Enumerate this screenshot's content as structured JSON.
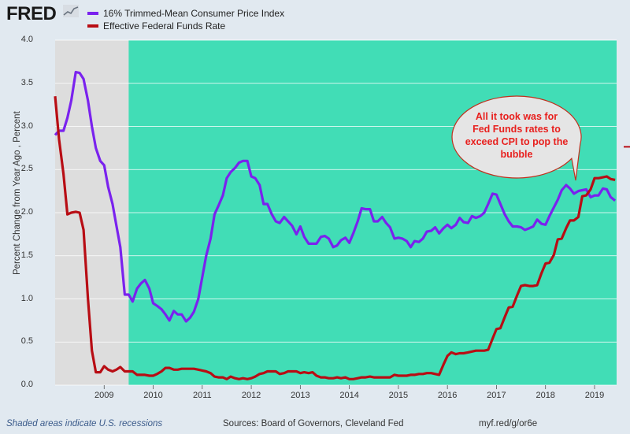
{
  "header": {
    "logo_text": "FRED",
    "logo_icon": "chart-line-icon"
  },
  "legend": [
    {
      "name": "16% Trimmed-Mean Consumer Price Index",
      "color": "#7a22ee"
    },
    {
      "name": "Effective Federal Funds Rate",
      "color": "#b80d14"
    }
  ],
  "annotation": {
    "text": "All it took was for Fed Funds rates to exceed CPI to pop the bubble",
    "lines": [
      "All it took was for",
      "Fed Funds rates to",
      "exceed CPI to pop the",
      "bubble"
    ],
    "text_color": "#e8201e",
    "bubble_color": "#e5e5e5"
  },
  "footer": {
    "recessions_note": "Shaded areas indicate U.S. recessions",
    "sources": "Sources: Board of Governors, Cleveland Fed",
    "link": "myf.red/g/or6e"
  },
  "colors": {
    "plot_background": "#41ddb6",
    "recession_shade": "#dddddd",
    "page_background": "#e1e9f0"
  },
  "chart_data": {
    "type": "line",
    "title": "",
    "xlabel": "",
    "ylabel": "Percent Change from Year Ago , Percent",
    "xlim": [
      2008.0,
      2019.45
    ],
    "ylim": [
      0,
      4.0
    ],
    "y_ticks": [
      "0.0",
      "0.5",
      "1.0",
      "1.5",
      "2.0",
      "2.5",
      "3.0",
      "3.5",
      "4.0"
    ],
    "x_ticks": [
      "2009",
      "2010",
      "2011",
      "2012",
      "2013",
      "2014",
      "2015",
      "2016",
      "2017",
      "2018",
      "2019"
    ],
    "grid": true,
    "legend_position": "top-left",
    "recessions": [
      [
        2008.0,
        2009.5
      ]
    ],
    "series": [
      {
        "name": "16% Trimmed-Mean Consumer Price Index",
        "color": "#7a22ee",
        "points": [
          [
            2008.0,
            2.9
          ],
          [
            2008.08,
            2.95
          ],
          [
            2008.17,
            2.95
          ],
          [
            2008.25,
            3.1
          ],
          [
            2008.33,
            3.3
          ],
          [
            2008.42,
            3.63
          ],
          [
            2008.5,
            3.62
          ],
          [
            2008.58,
            3.55
          ],
          [
            2008.67,
            3.3
          ],
          [
            2008.75,
            3.0
          ],
          [
            2008.83,
            2.75
          ],
          [
            2008.92,
            2.6
          ],
          [
            2009.0,
            2.55
          ],
          [
            2009.08,
            2.3
          ],
          [
            2009.17,
            2.1
          ],
          [
            2009.25,
            1.85
          ],
          [
            2009.33,
            1.6
          ],
          [
            2009.42,
            1.05
          ],
          [
            2009.5,
            1.05
          ],
          [
            2009.58,
            0.97
          ],
          [
            2009.67,
            1.12
          ],
          [
            2009.75,
            1.18
          ],
          [
            2009.83,
            1.22
          ],
          [
            2009.92,
            1.12
          ],
          [
            2010.0,
            0.95
          ],
          [
            2010.08,
            0.92
          ],
          [
            2010.17,
            0.88
          ],
          [
            2010.25,
            0.82
          ],
          [
            2010.33,
            0.75
          ],
          [
            2010.42,
            0.86
          ],
          [
            2010.5,
            0.82
          ],
          [
            2010.58,
            0.82
          ],
          [
            2010.67,
            0.74
          ],
          [
            2010.75,
            0.78
          ],
          [
            2010.83,
            0.85
          ],
          [
            2010.92,
            1.0
          ],
          [
            2011.0,
            1.25
          ],
          [
            2011.08,
            1.5
          ],
          [
            2011.17,
            1.7
          ],
          [
            2011.25,
            1.98
          ],
          [
            2011.33,
            2.08
          ],
          [
            2011.42,
            2.2
          ],
          [
            2011.5,
            2.4
          ],
          [
            2011.58,
            2.47
          ],
          [
            2011.67,
            2.52
          ],
          [
            2011.75,
            2.58
          ],
          [
            2011.83,
            2.6
          ],
          [
            2011.92,
            2.6
          ],
          [
            2012.0,
            2.42
          ],
          [
            2012.08,
            2.4
          ],
          [
            2012.17,
            2.32
          ],
          [
            2012.25,
            2.1
          ],
          [
            2012.33,
            2.1
          ],
          [
            2012.42,
            1.98
          ],
          [
            2012.5,
            1.9
          ],
          [
            2012.58,
            1.88
          ],
          [
            2012.67,
            1.95
          ],
          [
            2012.75,
            1.9
          ],
          [
            2012.83,
            1.85
          ],
          [
            2012.92,
            1.75
          ],
          [
            2013.0,
            1.84
          ],
          [
            2013.08,
            1.72
          ],
          [
            2013.17,
            1.64
          ],
          [
            2013.25,
            1.64
          ],
          [
            2013.33,
            1.64
          ],
          [
            2013.42,
            1.72
          ],
          [
            2013.5,
            1.73
          ],
          [
            2013.58,
            1.7
          ],
          [
            2013.67,
            1.6
          ],
          [
            2013.75,
            1.62
          ],
          [
            2013.83,
            1.68
          ],
          [
            2013.92,
            1.71
          ],
          [
            2014.0,
            1.65
          ],
          [
            2014.08,
            1.76
          ],
          [
            2014.17,
            1.9
          ],
          [
            2014.25,
            2.05
          ],
          [
            2014.33,
            2.04
          ],
          [
            2014.42,
            2.04
          ],
          [
            2014.5,
            1.9
          ],
          [
            2014.58,
            1.9
          ],
          [
            2014.67,
            1.95
          ],
          [
            2014.75,
            1.88
          ],
          [
            2014.83,
            1.83
          ],
          [
            2014.92,
            1.7
          ],
          [
            2015.0,
            1.71
          ],
          [
            2015.08,
            1.7
          ],
          [
            2015.17,
            1.67
          ],
          [
            2015.25,
            1.6
          ],
          [
            2015.33,
            1.67
          ],
          [
            2015.42,
            1.66
          ],
          [
            2015.5,
            1.7
          ],
          [
            2015.58,
            1.78
          ],
          [
            2015.67,
            1.79
          ],
          [
            2015.75,
            1.83
          ],
          [
            2015.83,
            1.76
          ],
          [
            2015.92,
            1.82
          ],
          [
            2016.0,
            1.86
          ],
          [
            2016.08,
            1.82
          ],
          [
            2016.17,
            1.86
          ],
          [
            2016.25,
            1.94
          ],
          [
            2016.33,
            1.89
          ],
          [
            2016.42,
            1.88
          ],
          [
            2016.5,
            1.96
          ],
          [
            2016.58,
            1.94
          ],
          [
            2016.67,
            1.96
          ],
          [
            2016.75,
            2.0
          ],
          [
            2016.83,
            2.1
          ],
          [
            2016.92,
            2.22
          ],
          [
            2017.0,
            2.21
          ],
          [
            2017.08,
            2.1
          ],
          [
            2017.17,
            1.98
          ],
          [
            2017.25,
            1.9
          ],
          [
            2017.33,
            1.84
          ],
          [
            2017.42,
            1.84
          ],
          [
            2017.5,
            1.83
          ],
          [
            2017.58,
            1.8
          ],
          [
            2017.67,
            1.82
          ],
          [
            2017.75,
            1.84
          ],
          [
            2017.83,
            1.92
          ],
          [
            2017.92,
            1.87
          ],
          [
            2018.0,
            1.86
          ],
          [
            2018.08,
            1.96
          ],
          [
            2018.17,
            2.06
          ],
          [
            2018.25,
            2.15
          ],
          [
            2018.33,
            2.26
          ],
          [
            2018.42,
            2.32
          ],
          [
            2018.5,
            2.28
          ],
          [
            2018.58,
            2.22
          ],
          [
            2018.67,
            2.25
          ],
          [
            2018.75,
            2.26
          ],
          [
            2018.83,
            2.27
          ],
          [
            2018.92,
            2.18
          ],
          [
            2019.0,
            2.2
          ],
          [
            2019.08,
            2.2
          ],
          [
            2019.17,
            2.28
          ],
          [
            2019.25,
            2.27
          ],
          [
            2019.33,
            2.18
          ],
          [
            2019.42,
            2.14
          ]
        ]
      },
      {
        "name": "Effective Federal Funds Rate",
        "color": "#b80d14",
        "points": [
          [
            2008.0,
            3.35
          ],
          [
            2008.08,
            2.85
          ],
          [
            2008.17,
            2.45
          ],
          [
            2008.25,
            1.98
          ],
          [
            2008.33,
            2.0
          ],
          [
            2008.42,
            2.01
          ],
          [
            2008.5,
            2.0
          ],
          [
            2008.58,
            1.8
          ],
          [
            2008.67,
            1.0
          ],
          [
            2008.75,
            0.4
          ],
          [
            2008.83,
            0.15
          ],
          [
            2008.92,
            0.15
          ],
          [
            2009.0,
            0.22
          ],
          [
            2009.08,
            0.18
          ],
          [
            2009.17,
            0.16
          ],
          [
            2009.25,
            0.18
          ],
          [
            2009.33,
            0.21
          ],
          [
            2009.42,
            0.16
          ],
          [
            2009.5,
            0.16
          ],
          [
            2009.58,
            0.16
          ],
          [
            2009.67,
            0.12
          ],
          [
            2009.75,
            0.12
          ],
          [
            2009.83,
            0.12
          ],
          [
            2009.92,
            0.11
          ],
          [
            2010.0,
            0.11
          ],
          [
            2010.08,
            0.13
          ],
          [
            2010.17,
            0.16
          ],
          [
            2010.25,
            0.2
          ],
          [
            2010.33,
            0.2
          ],
          [
            2010.42,
            0.18
          ],
          [
            2010.5,
            0.18
          ],
          [
            2010.58,
            0.19
          ],
          [
            2010.67,
            0.19
          ],
          [
            2010.75,
            0.19
          ],
          [
            2010.83,
            0.19
          ],
          [
            2010.92,
            0.18
          ],
          [
            2011.0,
            0.17
          ],
          [
            2011.08,
            0.16
          ],
          [
            2011.17,
            0.14
          ],
          [
            2011.25,
            0.1
          ],
          [
            2011.33,
            0.09
          ],
          [
            2011.42,
            0.09
          ],
          [
            2011.5,
            0.07
          ],
          [
            2011.58,
            0.1
          ],
          [
            2011.67,
            0.08
          ],
          [
            2011.75,
            0.07
          ],
          [
            2011.83,
            0.08
          ],
          [
            2011.92,
            0.07
          ],
          [
            2012.0,
            0.08
          ],
          [
            2012.08,
            0.1
          ],
          [
            2012.17,
            0.13
          ],
          [
            2012.25,
            0.14
          ],
          [
            2012.33,
            0.16
          ],
          [
            2012.42,
            0.16
          ],
          [
            2012.5,
            0.16
          ],
          [
            2012.58,
            0.13
          ],
          [
            2012.67,
            0.14
          ],
          [
            2012.75,
            0.16
          ],
          [
            2012.83,
            0.16
          ],
          [
            2012.92,
            0.16
          ],
          [
            2013.0,
            0.14
          ],
          [
            2013.08,
            0.15
          ],
          [
            2013.17,
            0.14
          ],
          [
            2013.25,
            0.15
          ],
          [
            2013.33,
            0.11
          ],
          [
            2013.42,
            0.09
          ],
          [
            2013.5,
            0.09
          ],
          [
            2013.58,
            0.08
          ],
          [
            2013.67,
            0.08
          ],
          [
            2013.75,
            0.09
          ],
          [
            2013.83,
            0.08
          ],
          [
            2013.92,
            0.09
          ],
          [
            2014.0,
            0.07
          ],
          [
            2014.08,
            0.07
          ],
          [
            2014.17,
            0.08
          ],
          [
            2014.25,
            0.09
          ],
          [
            2014.33,
            0.09
          ],
          [
            2014.42,
            0.1
          ],
          [
            2014.5,
            0.09
          ],
          [
            2014.58,
            0.09
          ],
          [
            2014.67,
            0.09
          ],
          [
            2014.75,
            0.09
          ],
          [
            2014.83,
            0.09
          ],
          [
            2014.92,
            0.12
          ],
          [
            2015.0,
            0.11
          ],
          [
            2015.08,
            0.11
          ],
          [
            2015.17,
            0.11
          ],
          [
            2015.25,
            0.12
          ],
          [
            2015.33,
            0.12
          ],
          [
            2015.42,
            0.13
          ],
          [
            2015.5,
            0.13
          ],
          [
            2015.58,
            0.14
          ],
          [
            2015.67,
            0.14
          ],
          [
            2015.75,
            0.13
          ],
          [
            2015.83,
            0.12
          ],
          [
            2015.92,
            0.24
          ],
          [
            2016.0,
            0.34
          ],
          [
            2016.08,
            0.38
          ],
          [
            2016.17,
            0.36
          ],
          [
            2016.25,
            0.37
          ],
          [
            2016.33,
            0.37
          ],
          [
            2016.42,
            0.38
          ],
          [
            2016.5,
            0.39
          ],
          [
            2016.58,
            0.4
          ],
          [
            2016.67,
            0.4
          ],
          [
            2016.75,
            0.4
          ],
          [
            2016.83,
            0.41
          ],
          [
            2016.92,
            0.54
          ],
          [
            2017.0,
            0.65
          ],
          [
            2017.08,
            0.66
          ],
          [
            2017.17,
            0.79
          ],
          [
            2017.25,
            0.9
          ],
          [
            2017.33,
            0.91
          ],
          [
            2017.42,
            1.04
          ],
          [
            2017.5,
            1.15
          ],
          [
            2017.58,
            1.16
          ],
          [
            2017.67,
            1.15
          ],
          [
            2017.75,
            1.15
          ],
          [
            2017.83,
            1.16
          ],
          [
            2017.92,
            1.3
          ],
          [
            2018.0,
            1.41
          ],
          [
            2018.08,
            1.42
          ],
          [
            2018.17,
            1.51
          ],
          [
            2018.25,
            1.69
          ],
          [
            2018.33,
            1.7
          ],
          [
            2018.42,
            1.82
          ],
          [
            2018.5,
            1.91
          ],
          [
            2018.58,
            1.91
          ],
          [
            2018.67,
            1.95
          ],
          [
            2018.75,
            2.19
          ],
          [
            2018.83,
            2.2
          ],
          [
            2018.92,
            2.27
          ],
          [
            2019.0,
            2.4
          ],
          [
            2019.08,
            2.4
          ],
          [
            2019.17,
            2.41
          ],
          [
            2019.25,
            2.42
          ],
          [
            2019.33,
            2.39
          ],
          [
            2019.42,
            2.38
          ]
        ]
      }
    ]
  }
}
